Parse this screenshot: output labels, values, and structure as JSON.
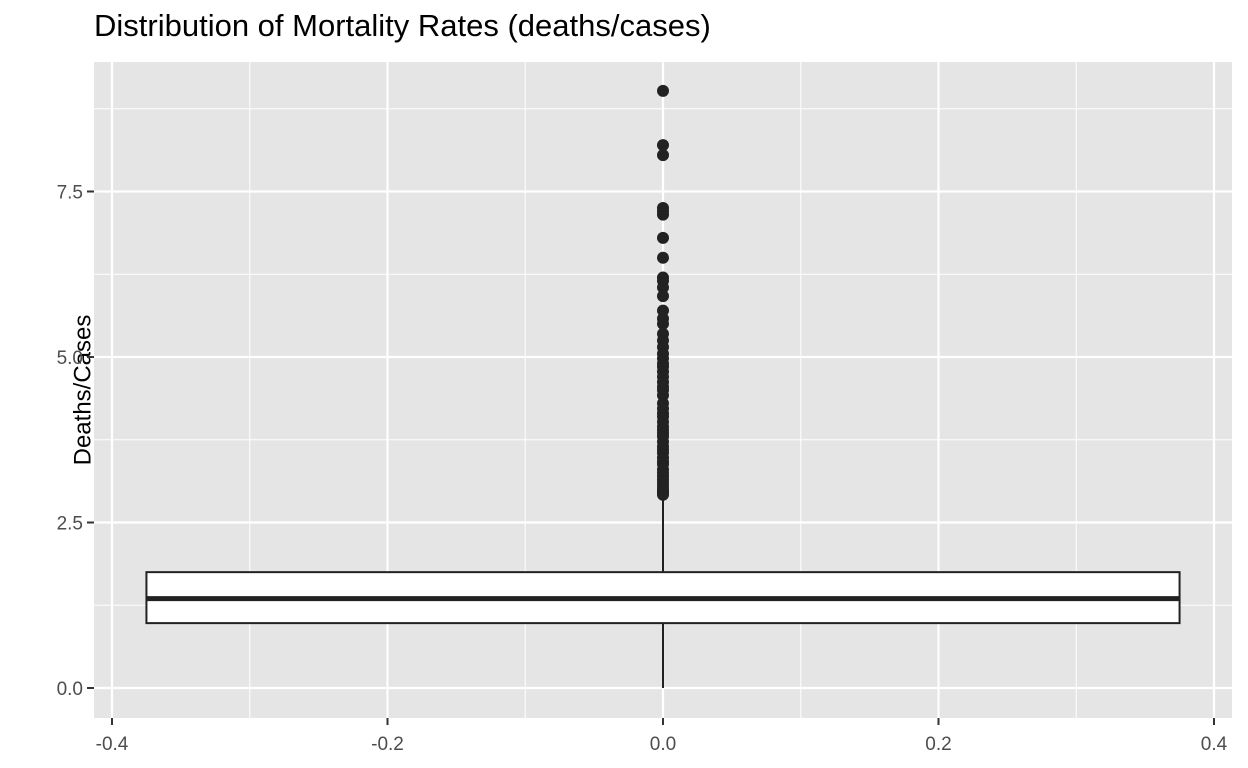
{
  "chart_data": {
    "type": "boxplot",
    "title": "Distribution of Mortality Rates (deaths/cases)",
    "xlabel": "",
    "ylabel": "Deaths/Cases",
    "xlim": [
      -0.4,
      0.4
    ],
    "ylim": [
      0,
      9
    ],
    "x_ticks": [
      "-0.4",
      "-0.2",
      "0.0",
      "0.2",
      "0.4"
    ],
    "x_tick_values": [
      -0.4,
      -0.2,
      0.0,
      0.2,
      0.4
    ],
    "y_ticks": [
      "0.0",
      "2.5",
      "5.0",
      "7.5"
    ],
    "y_tick_values": [
      0.0,
      2.5,
      5.0,
      7.5
    ],
    "grid": true,
    "colors": {
      "panel": "#e5e5e5",
      "grid": "#ffffff",
      "box_fill": "#ffffff",
      "box_stroke": "#222222",
      "points": "#222222"
    },
    "box": {
      "x_center": 0.0,
      "x_min": -0.375,
      "x_max": 0.375,
      "whisker_low": 0.0,
      "q1": 0.98,
      "median": 1.35,
      "q3": 1.75,
      "whisker_high": 2.9
    },
    "outliers": [
      9.02,
      8.2,
      8.05,
      7.25,
      7.2,
      7.15,
      6.8,
      6.5,
      6.2,
      6.15,
      6.05,
      5.92,
      5.7,
      5.58,
      5.5,
      5.35,
      5.25,
      5.15,
      5.05,
      4.98,
      4.9,
      4.85,
      4.78,
      4.7,
      4.62,
      4.55,
      4.5,
      4.42,
      4.3,
      4.22,
      4.15,
      4.1,
      4.02,
      3.95,
      3.9,
      3.85,
      3.8,
      3.72,
      3.65,
      3.6,
      3.55,
      3.48,
      3.42,
      3.38,
      3.3,
      3.25,
      3.2,
      3.15,
      3.1,
      3.05,
      3.0,
      2.98,
      2.95,
      2.92
    ]
  }
}
